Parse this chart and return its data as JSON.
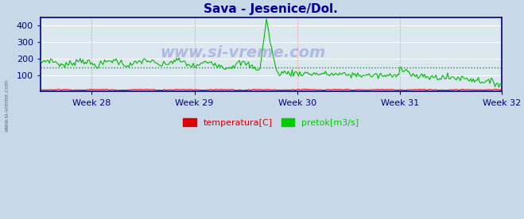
{
  "title": "Sava - Jesenice/Dol.",
  "title_color": "#000099",
  "title_fontsize": 11,
  "bg_color": "#c8d8e8",
  "plot_bg_color": "#dce8f0",
  "grid_h_color": "#ffffff",
  "grid_v_color": "#ffaaaa",
  "xlabel": "",
  "ylabel": "",
  "ylim": [
    0,
    450
  ],
  "yticks": [
    100,
    200,
    300,
    400
  ],
  "xtick_labels": [
    "Week 28",
    "Week 29",
    "Week 30",
    "Week 31",
    "Week 32"
  ],
  "legend_labels": [
    "temperatura[C]",
    "pretok[m3/s]"
  ],
  "legend_colors": [
    "#dd0000",
    "#00cc00"
  ],
  "watermark": "www.si-vreme.com",
  "watermark_color": "#0000aa",
  "watermark_alpha": 0.2,
  "line_color_temp": "#dd0000",
  "line_color_pretok": "#00bb00",
  "hline_value": 148,
  "hline_color": "#00aa00",
  "vline_color": "#ff8888",
  "axis_color": "#000088",
  "tick_color": "#000088",
  "tick_fontsize": 8
}
